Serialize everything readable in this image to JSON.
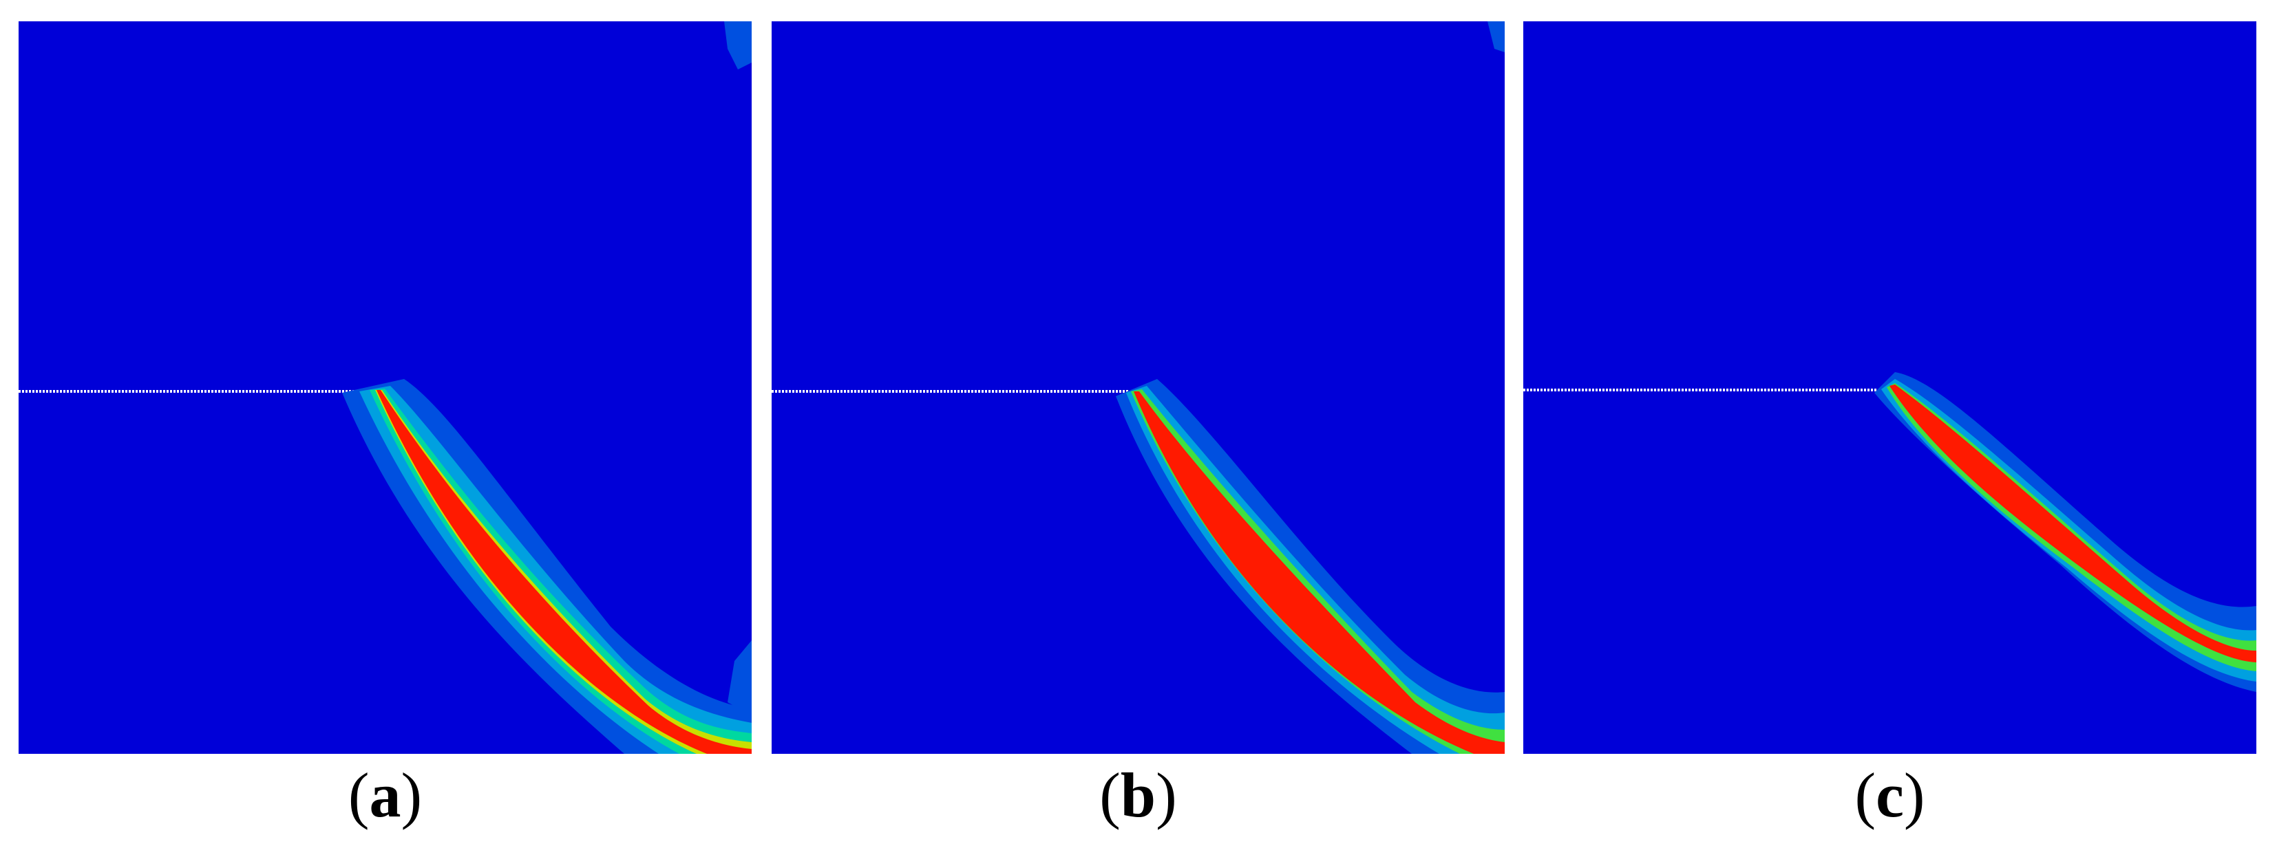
{
  "figure": {
    "panels": [
      {
        "id": "a",
        "label": "a"
      },
      {
        "id": "b",
        "label": "b"
      },
      {
        "id": "c",
        "label": "c"
      }
    ]
  },
  "colors": {
    "background": "#0000d8",
    "band_outer": "#0050e0",
    "band_2": "#00a0e0",
    "band_3": "#00d8a0",
    "band_4": "#40e040",
    "band_5": "#c8e000",
    "band_core": "#ff1a00"
  }
}
